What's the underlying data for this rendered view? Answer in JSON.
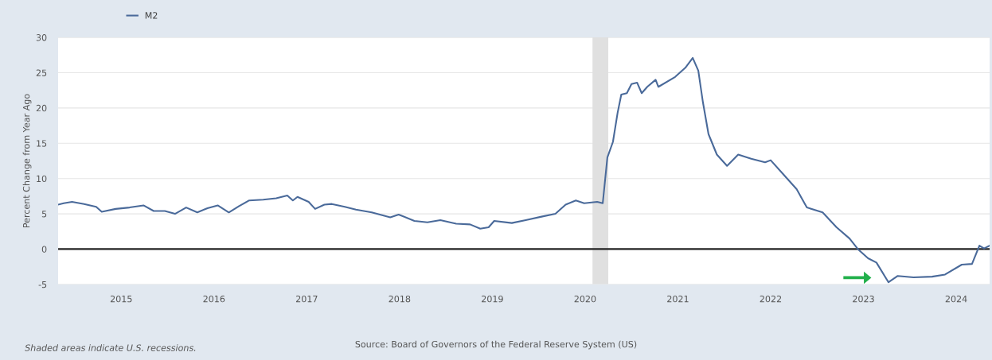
{
  "chart_data": {
    "type": "line",
    "ylabel": "Percent Change from Year Ago",
    "xlim": [
      2014.32,
      2024.36
    ],
    "xticks": [
      2015,
      2016,
      2017,
      2018,
      2019,
      2020,
      2021,
      2022,
      2023,
      2024
    ],
    "ylim": [
      -5,
      30
    ],
    "yticks": [
      -5,
      0,
      5,
      10,
      15,
      20,
      25,
      30
    ],
    "grid": "y",
    "legend": "top left",
    "series": [
      {
        "name": "M2",
        "color": "#4a6a9a",
        "x": [
          2014.32,
          2014.38,
          2014.47,
          2014.6,
          2014.73,
          2014.79,
          2014.94,
          2015.09,
          2015.24,
          2015.35,
          2015.47,
          2015.58,
          2015.7,
          2015.82,
          2015.93,
          2016.04,
          2016.16,
          2016.27,
          2016.38,
          2016.53,
          2016.67,
          2016.79,
          2016.85,
          2016.9,
          2017.02,
          2017.09,
          2017.19,
          2017.27,
          2017.41,
          2017.53,
          2017.7,
          2017.9,
          2017.99,
          2018.16,
          2018.3,
          2018.44,
          2018.61,
          2018.76,
          2018.87,
          2018.96,
          2019.02,
          2019.21,
          2019.36,
          2019.53,
          2019.68,
          2019.79,
          2019.9,
          2019.99,
          2020.13,
          2020.19,
          2020.24,
          2020.3,
          2020.35,
          2020.39,
          2020.45,
          2020.5,
          2020.56,
          2020.61,
          2020.67,
          2020.76,
          2020.79,
          2020.97,
          2021.08,
          2021.16,
          2021.22,
          2021.27,
          2021.33,
          2021.42,
          2021.53,
          2021.65,
          2021.79,
          2021.94,
          2022.0,
          2022.13,
          2022.28,
          2022.39,
          2022.56,
          2022.71,
          2022.85,
          2022.94,
          2023.05,
          2023.14,
          2023.27,
          2023.37,
          2023.54,
          2023.74,
          2023.88,
          2024.06,
          2024.17,
          2024.25,
          2024.3,
          2024.36
        ],
        "values": [
          6.3,
          6.5,
          6.7,
          6.4,
          6.0,
          5.3,
          5.7,
          5.9,
          6.2,
          5.4,
          5.4,
          5.0,
          5.9,
          5.2,
          5.8,
          6.2,
          5.2,
          6.1,
          6.9,
          7.0,
          7.2,
          7.6,
          6.9,
          7.4,
          6.7,
          5.7,
          6.3,
          6.4,
          6.0,
          5.6,
          5.2,
          4.5,
          4.9,
          4.0,
          3.8,
          4.1,
          3.6,
          3.5,
          2.9,
          3.1,
          4.0,
          3.7,
          4.1,
          4.6,
          5.0,
          6.3,
          6.9,
          6.5,
          6.7,
          6.5,
          13.0,
          15.2,
          19.3,
          21.9,
          22.1,
          23.4,
          23.6,
          22.1,
          23.0,
          24.0,
          23.0,
          24.4,
          25.7,
          27.1,
          25.3,
          20.8,
          16.3,
          13.4,
          11.8,
          13.4,
          12.8,
          12.3,
          12.6,
          10.7,
          8.5,
          5.9,
          5.2,
          3.1,
          1.5,
          0.0,
          -1.3,
          -1.9,
          -4.7,
          -3.8,
          -4.0,
          -3.9,
          -3.6,
          -2.2,
          -2.1,
          0.5,
          0.1,
          0.5
        ]
      }
    ],
    "ref_lines": [
      {
        "axis": "y",
        "value": 0,
        "color": "#222222"
      }
    ],
    "bands": [
      {
        "axis": "x",
        "from": 2020.08,
        "to": 2020.25,
        "color": "#e0e0e0"
      }
    ],
    "annotations": [
      "Shaded areas indicate U.S. recessions.",
      "Source: Board of Governors of the Federal Reserve System (US)"
    ]
  }
}
